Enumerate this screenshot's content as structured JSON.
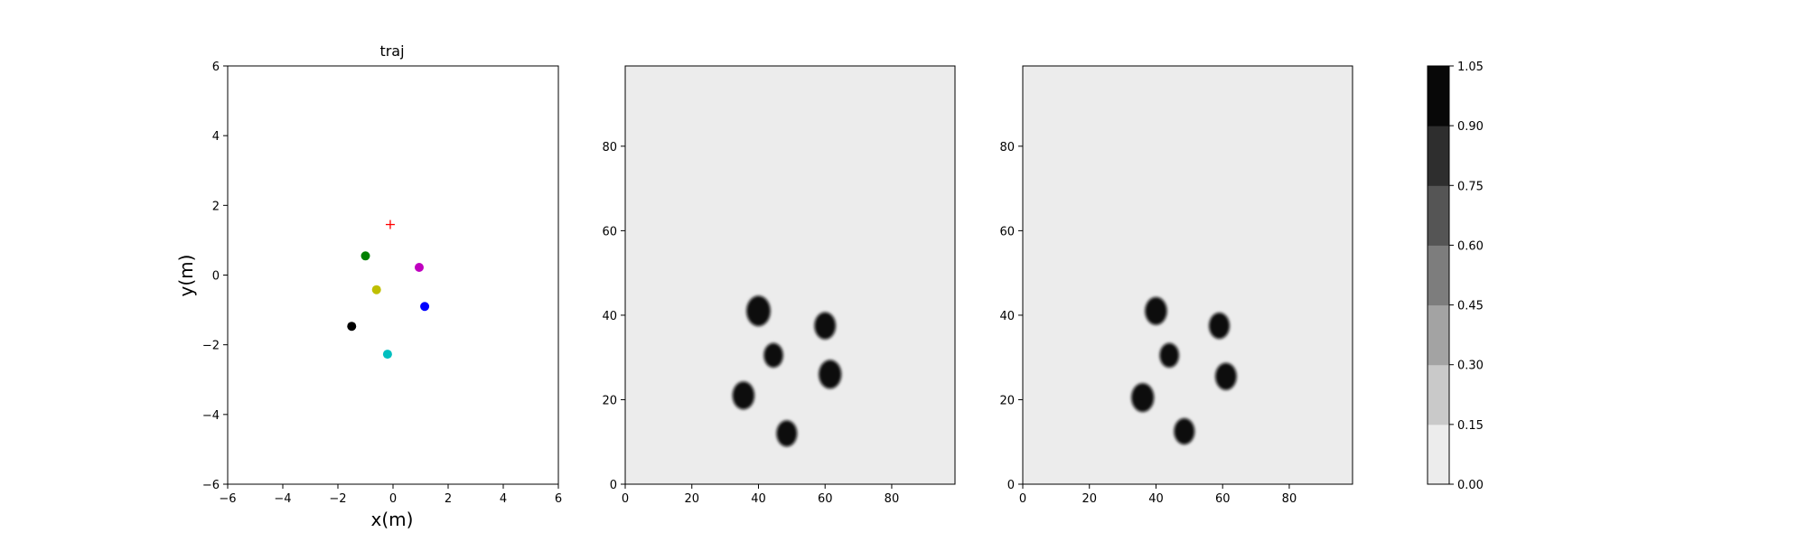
{
  "chart_data": [
    {
      "type": "scatter",
      "title": "traj",
      "xlabel": "x(m)",
      "ylabel": "y(m)",
      "xlim": [
        -6,
        6
      ],
      "ylim": [
        -6,
        6
      ],
      "xticks": [
        "−6",
        "−4",
        "−2",
        "0",
        "2",
        "4",
        "6"
      ],
      "yticks": [
        "−6",
        "−4",
        "−2",
        "0",
        "2",
        "4",
        "6"
      ],
      "grid": false,
      "points": [
        {
          "x": -0.1,
          "y": 1.45,
          "color": "#ff0000",
          "marker": "plus"
        },
        {
          "x": -1.0,
          "y": 0.55,
          "color": "#008000",
          "marker": "circle"
        },
        {
          "x": 0.95,
          "y": 0.22,
          "color": "#bf00bf",
          "marker": "circle"
        },
        {
          "x": -0.6,
          "y": -0.42,
          "color": "#bfbf00",
          "marker": "circle"
        },
        {
          "x": 1.15,
          "y": -0.9,
          "color": "#0000ff",
          "marker": "circle"
        },
        {
          "x": -1.5,
          "y": -1.47,
          "color": "#000000",
          "marker": "circle"
        },
        {
          "x": -0.2,
          "y": -2.27,
          "color": "#00bfbf",
          "marker": "circle"
        }
      ]
    },
    {
      "type": "heatmap",
      "xlim": [
        0,
        99
      ],
      "ylim": [
        0,
        99
      ],
      "xticks": [
        "0",
        "20",
        "40",
        "60",
        "80"
      ],
      "yticks": [
        "0",
        "20",
        "40",
        "60",
        "80"
      ],
      "background_value": 0.05,
      "blobs": [
        {
          "x": 40,
          "y": 41,
          "r": 3.6,
          "value": 1.0
        },
        {
          "x": 60,
          "y": 37.5,
          "r": 3.2,
          "value": 1.0
        },
        {
          "x": 44.5,
          "y": 30.5,
          "r": 2.9,
          "value": 1.0
        },
        {
          "x": 61.5,
          "y": 26,
          "r": 3.4,
          "value": 1.0
        },
        {
          "x": 35.5,
          "y": 21,
          "r": 3.3,
          "value": 1.0
        },
        {
          "x": 48.5,
          "y": 12,
          "r": 3.1,
          "value": 1.0
        }
      ]
    },
    {
      "type": "heatmap",
      "xlim": [
        0,
        99
      ],
      "ylim": [
        0,
        99
      ],
      "xticks": [
        "0",
        "20",
        "40",
        "60",
        "80"
      ],
      "yticks": [
        "0",
        "20",
        "40",
        "60",
        "80"
      ],
      "background_value": 0.05,
      "blobs": [
        {
          "x": 40,
          "y": 41,
          "r": 3.3,
          "value": 1.0
        },
        {
          "x": 59,
          "y": 37.5,
          "r": 3.1,
          "value": 1.0
        },
        {
          "x": 44,
          "y": 30.5,
          "r": 2.9,
          "value": 1.0
        },
        {
          "x": 61,
          "y": 25.5,
          "r": 3.2,
          "value": 1.0
        },
        {
          "x": 36,
          "y": 20.5,
          "r": 3.4,
          "value": 1.0
        },
        {
          "x": 48.5,
          "y": 12.5,
          "r": 3.1,
          "value": 1.0
        }
      ]
    }
  ],
  "colorbar": {
    "levels": [
      "0.00",
      "0.15",
      "0.30",
      "0.45",
      "0.60",
      "0.75",
      "0.90",
      "1.05"
    ],
    "colors": [
      "#ececec",
      "#c9c9c9",
      "#a3a3a3",
      "#7d7d7d",
      "#555555",
      "#2e2e2e",
      "#080808"
    ]
  }
}
